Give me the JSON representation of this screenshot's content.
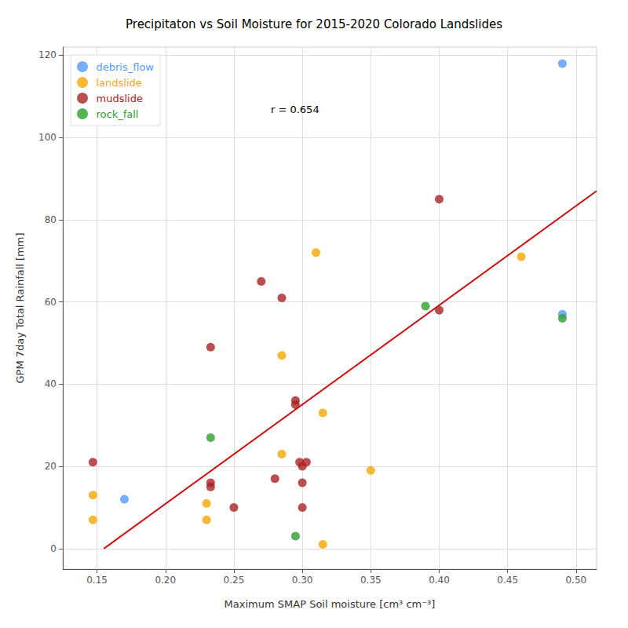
{
  "chart_data": {
    "type": "scatter",
    "title": "Precipitaton vs Soil Moisture for 2015-2020 Colorado Landslides",
    "xlabel": "Maximum SMAP Soil moisture [cm³ cm⁻³]",
    "ylabel": "GPM 7day Total Rainfall [mm]",
    "annotation": "r = 0.654",
    "series": [
      {
        "name": "debris_flow",
        "color": "#5599ff",
        "x": [
          0.49,
          0.49,
          0.17
        ],
        "values": [
          118,
          57,
          12
        ]
      },
      {
        "name": "landslide",
        "color": "#f5a800",
        "x": [
          0.147,
          0.147,
          0.23,
          0.23,
          0.285,
          0.285,
          0.31,
          0.315,
          0.315,
          0.35,
          0.46
        ],
        "values": [
          13,
          7,
          11,
          7,
          47,
          23,
          72,
          33,
          1,
          19,
          71
        ]
      },
      {
        "name": "mudslide",
        "color": "#aa2222",
        "x": [
          0.147,
          0.233,
          0.233,
          0.233,
          0.25,
          0.27,
          0.28,
          0.285,
          0.295,
          0.295,
          0.298,
          0.3,
          0.3,
          0.3,
          0.303,
          0.4,
          0.4
        ],
        "values": [
          21,
          49,
          16,
          15,
          10,
          65,
          17,
          61,
          36,
          35,
          21,
          20,
          16,
          10,
          21,
          85,
          58
        ]
      },
      {
        "name": "rock_fall",
        "color": "#2ca02c",
        "x": [
          0.233,
          0.295,
          0.39,
          0.49
        ],
        "values": [
          27,
          3,
          59,
          56
        ]
      },
      {
        "type": "line",
        "color": "#cc1111",
        "x": [
          0.155,
          0.515
        ],
        "values": [
          0.0,
          87.0
        ]
      }
    ],
    "xlim": [
      0.125,
      0.515
    ],
    "ylim": [
      -5,
      122
    ],
    "xticks": [
      0.15,
      {
        "value": 0.2,
        "label": "0.20"
      },
      0.25,
      {
        "value": 0.3,
        "label": "0.30"
      },
      0.35,
      {
        "value": 0.4,
        "label": "0.40"
      },
      0.45,
      {
        "value": 0.5,
        "label": "0.50"
      }
    ],
    "yticks": [
      0,
      20,
      40,
      60,
      80,
      100,
      120
    ],
    "grid": true,
    "legend": "upper left"
  }
}
